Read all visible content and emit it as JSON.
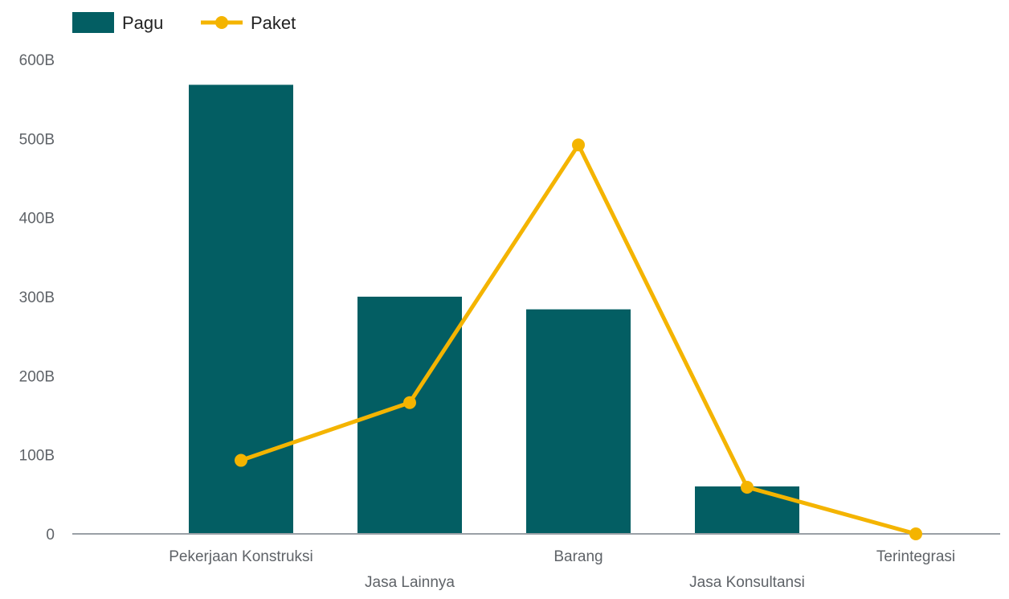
{
  "chart_data": {
    "type": "bar",
    "categories": [
      "Pekerjaan Konstruksi",
      "Jasa Lainnya",
      "Barang",
      "Jasa Konsultansi",
      "Terintegrasi"
    ],
    "series": [
      {
        "name": "Pagu",
        "type": "bar",
        "color": "#035e63",
        "values": [
          568,
          300,
          284,
          60,
          0
        ]
      },
      {
        "name": "Paket",
        "type": "line",
        "color": "#f4b400",
        "values": [
          93,
          166,
          492,
          59,
          0
        ]
      }
    ],
    "yticks": [
      {
        "value": 0,
        "label": "0"
      },
      {
        "value": 100,
        "label": "100B"
      },
      {
        "value": 200,
        "label": "200B"
      },
      {
        "value": 300,
        "label": "300B"
      },
      {
        "value": 400,
        "label": "400B"
      },
      {
        "value": 500,
        "label": "500B"
      },
      {
        "value": 600,
        "label": "600B"
      }
    ],
    "ylim": [
      0,
      600
    ],
    "grid": false,
    "legend_position": "top-left"
  }
}
